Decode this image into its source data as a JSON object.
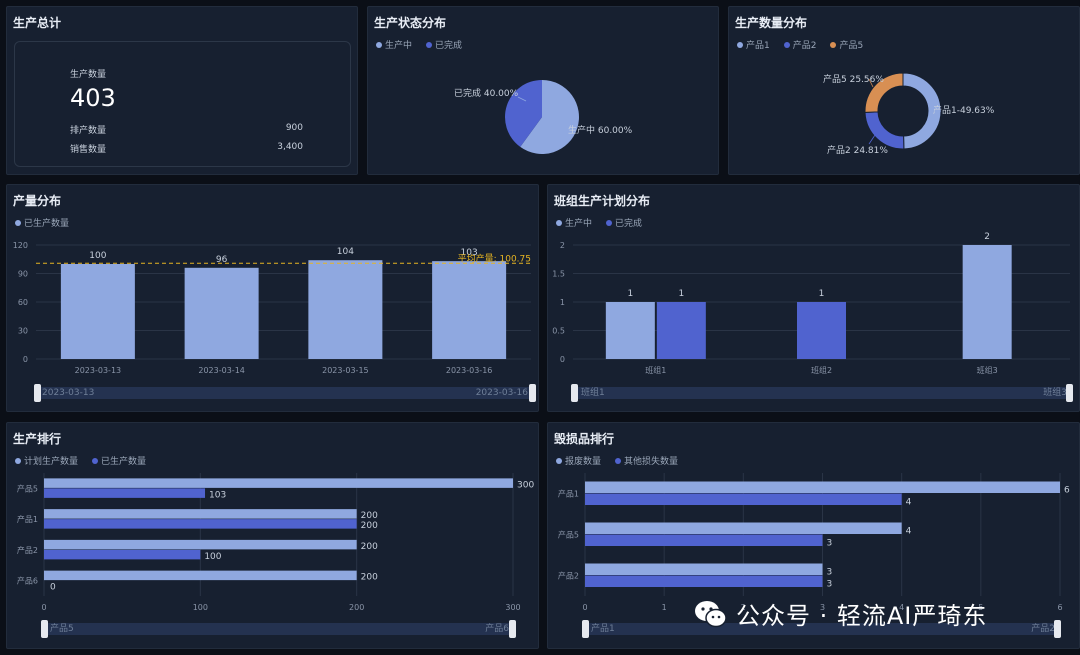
{
  "colors": {
    "light": "#8fa8e0",
    "dark": "#5063cf",
    "orange": "#d88f53",
    "avg": "#e6b422"
  },
  "summary": {
    "title": "生产总计",
    "prod_label": "生产数量",
    "prod_value": "403",
    "sched_label": "排产数量",
    "sched_value": "900",
    "sales_label": "销售数量",
    "sales_value": "3,400"
  },
  "status": {
    "title": "生产状态分布",
    "legend": [
      "生产中",
      "已完成"
    ]
  },
  "quantity": {
    "title": "生产数量分布",
    "legend": [
      "产品1",
      "产品2",
      "产品5"
    ]
  },
  "output": {
    "title": "产量分布",
    "legend": [
      "已生产数量"
    ],
    "slider_start": "2023-03-13",
    "slider_end": "2023-03-16"
  },
  "team": {
    "title": "班组生产计划分布",
    "legend": [
      "生产中",
      "已完成"
    ],
    "slider_start": "班组1",
    "slider_end": "班组3"
  },
  "rank": {
    "title": "生产排行",
    "legend": [
      "计划生产数量",
      "已生产数量"
    ],
    "slider_start": "产品5",
    "slider_end": "产品6"
  },
  "damage": {
    "title": "毁损品排行",
    "legend": [
      "报废数量",
      "其他损失数量"
    ],
    "slider_start": "产品1",
    "slider_end": "产品2"
  },
  "watermark": "公众号 · 轻流AI严琦东",
  "chart_data": [
    {
      "type": "pie",
      "title": "生产状态分布",
      "categories": [
        "生产中",
        "已完成"
      ],
      "values": [
        60,
        40
      ],
      "labels": [
        "生产中 60.00%",
        "已完成 40.00%"
      ]
    },
    {
      "type": "pie",
      "title": "生产数量分布",
      "donut": true,
      "categories": [
        "产品1",
        "产品2",
        "产品5"
      ],
      "values": [
        49.63,
        24.81,
        25.56
      ],
      "labels": [
        "产品1-49.63%",
        "产品2 24.81%",
        "产品5 25.56%"
      ]
    },
    {
      "type": "bar",
      "title": "产量分布",
      "categories": [
        "2023-03-13",
        "2023-03-14",
        "2023-03-15",
        "2023-03-16"
      ],
      "series": [
        {
          "name": "已生产数量",
          "values": [
            100,
            96,
            104,
            103
          ]
        }
      ],
      "ylim": [
        0,
        120
      ],
      "yticks": [
        0,
        30,
        60,
        90,
        120
      ],
      "avg_line": {
        "label": "平均产量: 100.75",
        "value": 100.75
      }
    },
    {
      "type": "bar",
      "title": "班组生产计划分布",
      "categories": [
        "班组1",
        "班组2",
        "班组3"
      ],
      "series": [
        {
          "name": "生产中",
          "values": [
            1,
            null,
            2
          ]
        },
        {
          "name": "已完成",
          "values": [
            1,
            1,
            null
          ]
        }
      ],
      "ylim": [
        0,
        2
      ],
      "yticks": [
        0,
        0.5,
        1,
        1.5,
        2
      ]
    },
    {
      "type": "bar",
      "orientation": "horizontal",
      "title": "生产排行",
      "categories": [
        "产品5",
        "产品1",
        "产品2",
        "产品6"
      ],
      "series": [
        {
          "name": "计划生产数量",
          "values": [
            300,
            200,
            200,
            200
          ]
        },
        {
          "name": "已生产数量",
          "values": [
            103,
            200,
            100,
            0
          ]
        }
      ],
      "xlim": [
        0,
        300
      ],
      "xticks": [
        0,
        100,
        200,
        300
      ]
    },
    {
      "type": "bar",
      "orientation": "horizontal",
      "title": "毁损品排行",
      "categories": [
        "产品1",
        "产品5",
        "产品2"
      ],
      "series": [
        {
          "name": "报废数量",
          "values": [
            6,
            4,
            3
          ]
        },
        {
          "name": "其他损失数量",
          "values": [
            4,
            3,
            3
          ]
        }
      ],
      "xlim": [
        0,
        6
      ],
      "xticks": [
        0,
        1,
        2,
        3,
        4,
        5,
        6
      ]
    }
  ]
}
